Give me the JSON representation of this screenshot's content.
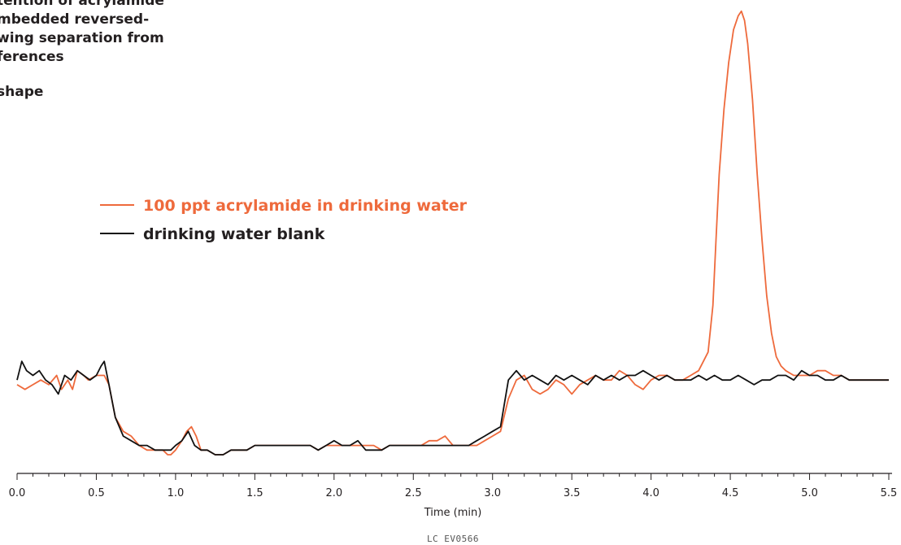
{
  "callouts": [
    "tention of acrylamide",
    "mbedded reversed-",
    "wing separation from",
    "ferences",
    "shape"
  ],
  "legend": {
    "sample_label": "100 ppt acrylamide in drinking water",
    "blank_label": "drinking water blank"
  },
  "colors": {
    "sample": "#ee6a3c",
    "blank": "#111111",
    "text": "#231f20"
  },
  "footer_code": "LC EV0566",
  "chart_data": {
    "type": "line",
    "title": "",
    "xlabel": "Time (min)",
    "ylabel": "",
    "xlim": [
      0.0,
      5.5
    ],
    "ylim": [
      0,
      100
    ],
    "x_ticks": [
      0.0,
      0.5,
      1.0,
      1.5,
      2.0,
      2.5,
      3.0,
      3.5,
      4.0,
      4.5,
      5.0,
      5.5
    ],
    "x_tick_labels": [
      "0.0",
      "0.5",
      "1.0",
      "1.5",
      "2.0",
      "2.5",
      "3.0",
      "3.5",
      "4.0",
      "4.5",
      "5.0",
      "5.5"
    ],
    "grid": false,
    "legend_position": "upper-left",
    "series": [
      {
        "name": "100 ppt acrylamide in drinking water",
        "color": "#ee6a3c",
        "points": [
          [
            0.0,
            19
          ],
          [
            0.05,
            18
          ],
          [
            0.1,
            19
          ],
          [
            0.15,
            20
          ],
          [
            0.2,
            19
          ],
          [
            0.25,
            21
          ],
          [
            0.28,
            18
          ],
          [
            0.32,
            20
          ],
          [
            0.35,
            18
          ],
          [
            0.38,
            22
          ],
          [
            0.42,
            21
          ],
          [
            0.45,
            20
          ],
          [
            0.5,
            21
          ],
          [
            0.55,
            21
          ],
          [
            0.58,
            19
          ],
          [
            0.62,
            12
          ],
          [
            0.67,
            9
          ],
          [
            0.72,
            8
          ],
          [
            0.77,
            6
          ],
          [
            0.82,
            5
          ],
          [
            0.87,
            5
          ],
          [
            0.92,
            5
          ],
          [
            0.95,
            4
          ],
          [
            0.97,
            4
          ],
          [
            1.0,
            5
          ],
          [
            1.04,
            7
          ],
          [
            1.07,
            9
          ],
          [
            1.1,
            10
          ],
          [
            1.13,
            8
          ],
          [
            1.16,
            5
          ],
          [
            1.2,
            5
          ],
          [
            1.25,
            4
          ],
          [
            1.3,
            4
          ],
          [
            1.35,
            5
          ],
          [
            1.4,
            5
          ],
          [
            1.45,
            5
          ],
          [
            1.5,
            6
          ],
          [
            1.55,
            6
          ],
          [
            1.6,
            6
          ],
          [
            1.65,
            6
          ],
          [
            1.7,
            6
          ],
          [
            1.75,
            6
          ],
          [
            1.8,
            6
          ],
          [
            1.85,
            6
          ],
          [
            1.9,
            5
          ],
          [
            1.95,
            6
          ],
          [
            2.0,
            6
          ],
          [
            2.05,
            6
          ],
          [
            2.1,
            6
          ],
          [
            2.15,
            6
          ],
          [
            2.2,
            6
          ],
          [
            2.25,
            6
          ],
          [
            2.3,
            5
          ],
          [
            2.35,
            6
          ],
          [
            2.4,
            6
          ],
          [
            2.45,
            6
          ],
          [
            2.5,
            6
          ],
          [
            2.55,
            6
          ],
          [
            2.6,
            7
          ],
          [
            2.65,
            7
          ],
          [
            2.7,
            8
          ],
          [
            2.75,
            6
          ],
          [
            2.8,
            6
          ],
          [
            2.85,
            6
          ],
          [
            2.9,
            6
          ],
          [
            2.95,
            7
          ],
          [
            3.0,
            8
          ],
          [
            3.05,
            9
          ],
          [
            3.1,
            16
          ],
          [
            3.15,
            20
          ],
          [
            3.2,
            21
          ],
          [
            3.25,
            18
          ],
          [
            3.3,
            17
          ],
          [
            3.35,
            18
          ],
          [
            3.4,
            20
          ],
          [
            3.45,
            19
          ],
          [
            3.5,
            17
          ],
          [
            3.55,
            19
          ],
          [
            3.6,
            20
          ],
          [
            3.65,
            21
          ],
          [
            3.7,
            20
          ],
          [
            3.75,
            20
          ],
          [
            3.8,
            22
          ],
          [
            3.85,
            21
          ],
          [
            3.9,
            19
          ],
          [
            3.95,
            18
          ],
          [
            4.0,
            20
          ],
          [
            4.05,
            21
          ],
          [
            4.1,
            21
          ],
          [
            4.15,
            20
          ],
          [
            4.2,
            20
          ],
          [
            4.25,
            21
          ],
          [
            4.3,
            22
          ],
          [
            4.33,
            24
          ],
          [
            4.36,
            26
          ],
          [
            4.39,
            36
          ],
          [
            4.41,
            50
          ],
          [
            4.43,
            64
          ],
          [
            4.46,
            78
          ],
          [
            4.49,
            88
          ],
          [
            4.52,
            95
          ],
          [
            4.55,
            98
          ],
          [
            4.57,
            99
          ],
          [
            4.59,
            97
          ],
          [
            4.61,
            92
          ],
          [
            4.64,
            80
          ],
          [
            4.67,
            64
          ],
          [
            4.7,
            50
          ],
          [
            4.73,
            38
          ],
          [
            4.76,
            30
          ],
          [
            4.79,
            25
          ],
          [
            4.82,
            23
          ],
          [
            4.85,
            22
          ],
          [
            4.9,
            21
          ],
          [
            4.95,
            21
          ],
          [
            5.0,
            21
          ],
          [
            5.05,
            22
          ],
          [
            5.1,
            22
          ],
          [
            5.15,
            21
          ],
          [
            5.2,
            21
          ],
          [
            5.25,
            20
          ],
          [
            5.3,
            20
          ],
          [
            5.35,
            20
          ],
          [
            5.4,
            20
          ],
          [
            5.45,
            20
          ],
          [
            5.5,
            20
          ]
        ]
      },
      {
        "name": "drinking water blank",
        "color": "#111111",
        "points": [
          [
            0.0,
            20
          ],
          [
            0.03,
            24
          ],
          [
            0.06,
            22
          ],
          [
            0.1,
            21
          ],
          [
            0.14,
            22
          ],
          [
            0.18,
            20
          ],
          [
            0.22,
            19
          ],
          [
            0.26,
            17
          ],
          [
            0.3,
            21
          ],
          [
            0.34,
            20
          ],
          [
            0.38,
            22
          ],
          [
            0.42,
            21
          ],
          [
            0.46,
            20
          ],
          [
            0.5,
            21
          ],
          [
            0.53,
            23
          ],
          [
            0.55,
            24
          ],
          [
            0.58,
            19
          ],
          [
            0.62,
            12
          ],
          [
            0.67,
            8
          ],
          [
            0.72,
            7
          ],
          [
            0.77,
            6
          ],
          [
            0.82,
            6
          ],
          [
            0.87,
            5
          ],
          [
            0.92,
            5
          ],
          [
            0.97,
            5
          ],
          [
            1.0,
            6
          ],
          [
            1.04,
            7
          ],
          [
            1.08,
            9
          ],
          [
            1.12,
            6
          ],
          [
            1.16,
            5
          ],
          [
            1.2,
            5
          ],
          [
            1.25,
            4
          ],
          [
            1.3,
            4
          ],
          [
            1.35,
            5
          ],
          [
            1.4,
            5
          ],
          [
            1.45,
            5
          ],
          [
            1.5,
            6
          ],
          [
            1.55,
            6
          ],
          [
            1.6,
            6
          ],
          [
            1.65,
            6
          ],
          [
            1.7,
            6
          ],
          [
            1.75,
            6
          ],
          [
            1.8,
            6
          ],
          [
            1.85,
            6
          ],
          [
            1.9,
            5
          ],
          [
            1.95,
            6
          ],
          [
            2.0,
            7
          ],
          [
            2.05,
            6
          ],
          [
            2.1,
            6
          ],
          [
            2.15,
            7
          ],
          [
            2.2,
            5
          ],
          [
            2.25,
            5
          ],
          [
            2.3,
            5
          ],
          [
            2.35,
            6
          ],
          [
            2.4,
            6
          ],
          [
            2.45,
            6
          ],
          [
            2.5,
            6
          ],
          [
            2.55,
            6
          ],
          [
            2.6,
            6
          ],
          [
            2.65,
            6
          ],
          [
            2.7,
            6
          ],
          [
            2.75,
            6
          ],
          [
            2.8,
            6
          ],
          [
            2.85,
            6
          ],
          [
            2.9,
            7
          ],
          [
            2.95,
            8
          ],
          [
            3.0,
            9
          ],
          [
            3.05,
            10
          ],
          [
            3.1,
            20
          ],
          [
            3.15,
            22
          ],
          [
            3.2,
            20
          ],
          [
            3.25,
            21
          ],
          [
            3.3,
            20
          ],
          [
            3.35,
            19
          ],
          [
            3.4,
            21
          ],
          [
            3.45,
            20
          ],
          [
            3.5,
            21
          ],
          [
            3.55,
            20
          ],
          [
            3.6,
            19
          ],
          [
            3.65,
            21
          ],
          [
            3.7,
            20
          ],
          [
            3.75,
            21
          ],
          [
            3.8,
            20
          ],
          [
            3.85,
            21
          ],
          [
            3.9,
            21
          ],
          [
            3.95,
            22
          ],
          [
            4.0,
            21
          ],
          [
            4.05,
            20
          ],
          [
            4.1,
            21
          ],
          [
            4.15,
            20
          ],
          [
            4.2,
            20
          ],
          [
            4.25,
            20
          ],
          [
            4.3,
            21
          ],
          [
            4.35,
            20
          ],
          [
            4.4,
            21
          ],
          [
            4.45,
            20
          ],
          [
            4.5,
            20
          ],
          [
            4.55,
            21
          ],
          [
            4.6,
            20
          ],
          [
            4.65,
            19
          ],
          [
            4.7,
            20
          ],
          [
            4.75,
            20
          ],
          [
            4.8,
            21
          ],
          [
            4.85,
            21
          ],
          [
            4.9,
            20
          ],
          [
            4.95,
            22
          ],
          [
            5.0,
            21
          ],
          [
            5.05,
            21
          ],
          [
            5.1,
            20
          ],
          [
            5.15,
            20
          ],
          [
            5.2,
            21
          ],
          [
            5.25,
            20
          ],
          [
            5.3,
            20
          ],
          [
            5.35,
            20
          ],
          [
            5.4,
            20
          ],
          [
            5.45,
            20
          ],
          [
            5.5,
            20
          ]
        ]
      }
    ]
  }
}
